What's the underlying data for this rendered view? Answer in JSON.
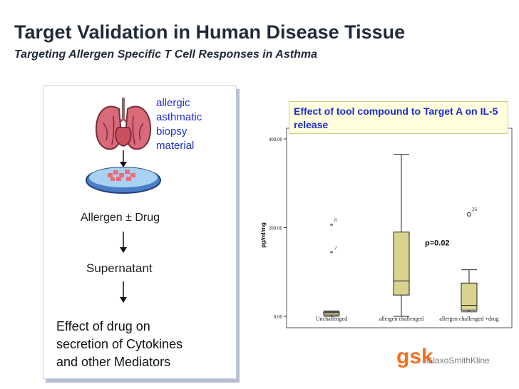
{
  "slide": {
    "title": "Target Validation in Human Disease Tissue",
    "subtitle": "Targeting Allergen Specific T Cell Responses in Asthma"
  },
  "workflow": {
    "biopsy_label": [
      "allergic",
      "asthmatic",
      "biopsy",
      "material"
    ],
    "step_allergen": "Allergen ± Drug",
    "step_supernatant": "Supernatant",
    "final_effect": [
      "Effect of drug on",
      "secretion of Cytokines",
      "and other Mediators"
    ]
  },
  "chart_caption": "Effect of tool compound to Target A on IL-5 release",
  "logo": {
    "mark": "gsk",
    "wordmark": "GlaxoSmithKline",
    "color": "#f36f21"
  },
  "colors": {
    "box_fill": "#d9d38f",
    "caption_text": "#1a2bd4",
    "biopsy_text": "#1f2ed6"
  },
  "chart_data": {
    "type": "boxplot",
    "title": "Effect of tool compound to Target A on IL-5 release",
    "xlabel": "",
    "ylabel": "pg/ml/mg",
    "ylim": [
      0,
      400
    ],
    "yticks": [
      0,
      200,
      400
    ],
    "ytick_labels": [
      "0.00",
      "200.00",
      "400.00"
    ],
    "categories": [
      "Unchallenged",
      "allergen challenged",
      "allergen challenged +drug"
    ],
    "boxes": [
      {
        "category": "Unchallenged",
        "whisker_low": 0,
        "q1": 3,
        "median": 8,
        "q3": 10,
        "whisker_high": 12
      },
      {
        "category": "allergen challenged",
        "whisker_low": 0,
        "q1": 48,
        "median": 80,
        "q3": 190,
        "whisker_high": 365
      },
      {
        "category": "allergen challenged +drug",
        "whisker_low": 10,
        "q1": 14,
        "median": 25,
        "q3": 75,
        "whisker_high": 105
      }
    ],
    "outliers": [
      {
        "category": "Unchallenged",
        "value": 205,
        "marker": "*",
        "label": "8"
      },
      {
        "category": "Unchallenged",
        "value": 143,
        "marker": "*",
        "label": "2"
      },
      {
        "category": "allergen challenged +drug",
        "value": 230,
        "marker": "o",
        "label": "26"
      }
    ],
    "annotation": "p=0.02"
  }
}
